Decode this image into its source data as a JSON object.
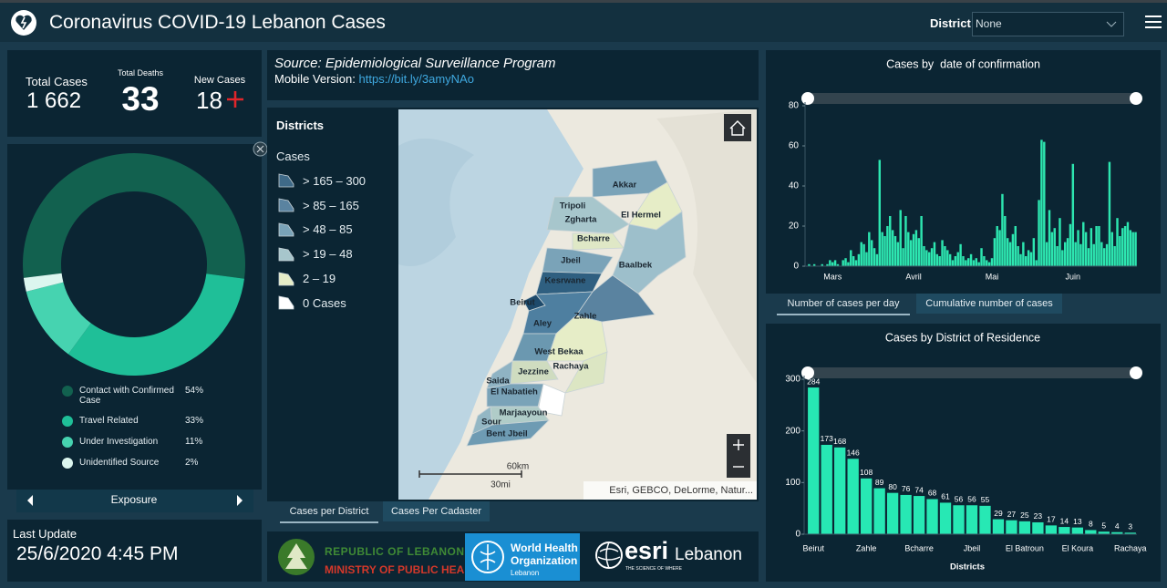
{
  "header": {
    "title": "Coronavirus COVID-19 Lebanon Cases",
    "district_label": "District",
    "district_value": "None"
  },
  "stats": {
    "total_cases_label": "Total Cases",
    "total_cases": "1 662",
    "total_deaths_label": "Total Deaths",
    "total_deaths": "33",
    "new_cases_label": "New Cases",
    "new_cases": "18"
  },
  "last_update": {
    "label": "Last Update",
    "value": "25/6/2020 4:45 PM"
  },
  "source": {
    "text": "Source: Epidemiological Surveillance Program",
    "mobile_label": "Mobile Version:",
    "mobile_link": "https://bit.ly/3amyNAo"
  },
  "map": {
    "legend_title": "Districts",
    "legend_subtitle": "Cases",
    "legend": [
      {
        "label": "> 165 – 300",
        "color": "#3f6a88"
      },
      {
        "label": "> 85 – 165",
        "color": "#5a83a0"
      },
      {
        "label": "> 48 – 85",
        "color": "#7aa3b8"
      },
      {
        "label": "> 19 – 48",
        "color": "#a7c6cc"
      },
      {
        "label": "2 – 19",
        "color": "#e6edc7"
      },
      {
        "label": "0 Cases",
        "color": "#ffffff"
      }
    ],
    "labels": [
      "Akkar",
      "Tripoli",
      "Zgharta",
      "El Hermel",
      "Bcharre",
      "Jbeil",
      "Baalbek",
      "Kesrwane",
      "Beirut",
      "Zahle",
      "Aley",
      "West Bekaa",
      "Rachaya",
      "Jezzine",
      "Saida",
      "El Nabatieh",
      "Marjaayoun",
      "Sour",
      "Bent Jbeil"
    ],
    "scale_km": "60km",
    "scale_mi": "30mi",
    "attribution": "Esri, GEBCO, DeLorme, Natur...",
    "tabs": [
      "Cases per District",
      "Cases Per Cadaster"
    ]
  },
  "logos": {
    "moph_line1": "REPUBLIC OF LEBANON",
    "moph_line2": "MINISTRY OF PUBLIC HEALTH",
    "who_line1": "World Health",
    "who_line2": "Organization",
    "who_line3": "Lebanon",
    "esri": "esri",
    "esri_country": "Lebanon",
    "esri_tagline": "THE SCIENCE OF WHERE"
  },
  "chart_data": [
    {
      "type": "pie",
      "categories": [
        "Contact with Confirmed Case",
        "Travel Related",
        "Under Investigation",
        "Unidentified Source"
      ],
      "values": [
        54,
        33,
        11,
        2
      ],
      "value_labels": [
        "54%",
        "33%",
        "11%",
        "2%"
      ],
      "colors": [
        "#12614f",
        "#1fbf98",
        "#46d3b0",
        "#dcf6ef"
      ],
      "footer": "Exposure"
    },
    {
      "type": "bar",
      "title": "Cases by  date of confirmation",
      "categories": [
        null,
        null,
        null,
        null,
        null,
        null,
        null,
        null,
        null,
        "Mars",
        null,
        null,
        null,
        null,
        null,
        null,
        null,
        null,
        null,
        null,
        null,
        null,
        null,
        null,
        null,
        null,
        null,
        null,
        null,
        null,
        null,
        null,
        null,
        null,
        null,
        null,
        null,
        null,
        null,
        null,
        "Avril",
        null,
        null,
        null,
        null,
        null,
        null,
        null,
        null,
        null,
        null,
        null,
        null,
        null,
        null,
        null,
        null,
        null,
        null,
        null,
        null,
        null,
        null,
        null,
        null,
        null,
        null,
        null,
        null,
        null,
        "Mai",
        null,
        null,
        null,
        null,
        null,
        null,
        null,
        null,
        null,
        null,
        null,
        null,
        null,
        null,
        null,
        null,
        null,
        null,
        null,
        null,
        null,
        null,
        null,
        null,
        null,
        null,
        null,
        null,
        null,
        null,
        "Juin",
        null,
        null,
        null,
        null,
        null,
        null,
        null,
        null,
        null,
        null,
        null,
        null,
        null,
        null,
        null,
        null,
        null,
        null,
        null,
        null,
        null,
        null,
        null,
        null
      ],
      "values": [
        1,
        0,
        1,
        0,
        0,
        1,
        0,
        1,
        3,
        2,
        3,
        1,
        0,
        3,
        4,
        2,
        8,
        5,
        3,
        6,
        12,
        11,
        7,
        17,
        13,
        9,
        6,
        53,
        17,
        15,
        20,
        25,
        18,
        15,
        12,
        28,
        9,
        25,
        17,
        13,
        16,
        18,
        14,
        25,
        10,
        8,
        7,
        9,
        12,
        6,
        5,
        13,
        10,
        8,
        6,
        3,
        5,
        7,
        11,
        5,
        3,
        4,
        6,
        3,
        4,
        2,
        9,
        5,
        3,
        2,
        4,
        14,
        20,
        18,
        36,
        25,
        14,
        12,
        16,
        20,
        10,
        6,
        12,
        5,
        8,
        7,
        14,
        3,
        33,
        63,
        62,
        12,
        28,
        17,
        19,
        10,
        24,
        8,
        12,
        14,
        21,
        51,
        12,
        18,
        11,
        22,
        17,
        9,
        19,
        11,
        20,
        20,
        12,
        9,
        11,
        52,
        17,
        10,
        24,
        15,
        19,
        20,
        22,
        18,
        17,
        17
      ],
      "color": "#2de6b0",
      "ylim": [
        0,
        80
      ],
      "yticks": [
        0,
        20,
        40,
        60,
        80
      ],
      "tabs": [
        "Number of cases per day",
        "Cumulative number of cases"
      ]
    },
    {
      "type": "bar",
      "title": "Cases by District of Residence",
      "x_label": "Districts",
      "categories": [
        "Beirut",
        null,
        null,
        null,
        "Zahle",
        null,
        null,
        null,
        "Bcharre",
        null,
        null,
        null,
        "Jbeil",
        null,
        null,
        null,
        "El Batroun",
        null,
        null,
        null,
        "El Koura",
        null,
        null,
        null,
        "Rachaya"
      ],
      "values": [
        284,
        173,
        168,
        146,
        108,
        89,
        80,
        76,
        74,
        68,
        61,
        56,
        56,
        55,
        29,
        27,
        25,
        23,
        17,
        14,
        13,
        8,
        5,
        4,
        3
      ],
      "color": "#27e8b4",
      "data_labels": true,
      "ylim": [
        0,
        300
      ],
      "yticks": [
        0,
        100,
        200,
        300
      ]
    }
  ]
}
